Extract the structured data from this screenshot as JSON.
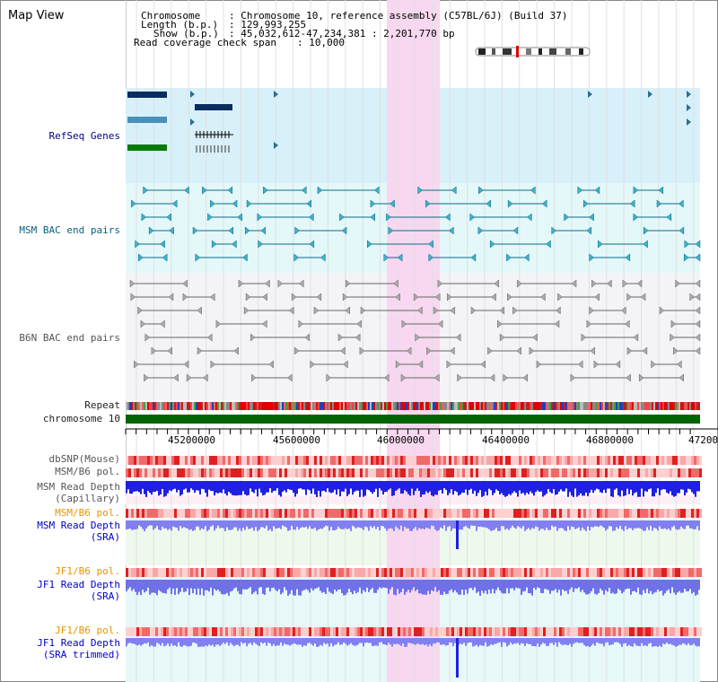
{
  "view": {
    "title": "Map View",
    "chromosome_key": "Chromosome",
    "chromosome_value": ": Chromosome 10, reference assembly (C57BL/6J) (Build 37)",
    "length_key": "Length (b.p.)",
    "length_value": ": 129,993,255",
    "show_key": "Show (b.p.)",
    "show_value": ": 45,032,612-47,234,381 : 2,201,770 bp",
    "coverage_key": "Read coverage check span",
    "coverage_value": ": 10,000"
  },
  "tracks": {
    "refseq": "RefSeq Genes",
    "msm_bac": "MSM BAC end pairs",
    "b6n_bac": "B6N BAC end pairs",
    "repeat": "Repeat",
    "chromosome": "chromosome 10",
    "dbsnp": "dbSNP(Mouse)",
    "msm_b6_pol": "MSM/B6 pol.",
    "msm_read_cap_1": "MSM Read Depth",
    "msm_read_cap_2": "(Capillary)",
    "msm_b6_pol_2": "MSM/B6 pol.",
    "msm_read_sra_1": "MSM Read Depth",
    "msm_read_sra_2": "(SRA)",
    "jf1_b6_pol": "JF1/B6 pol.",
    "jf1_read_sra_1": "JF1 Read Depth",
    "jf1_read_sra_2": "(SRA)",
    "jf1_b6_pol_2": "JF1/B6 pol.",
    "jf1_read_trim_1": "JF1 Read Depth",
    "jf1_read_trim_2": "(SRA trimmed)"
  },
  "axis": {
    "ticks": [
      "45200000",
      "45600000",
      "46000000",
      "46400000",
      "46800000",
      "47200"
    ]
  },
  "colors": {
    "refseq_bg": "#d8f0fa",
    "msm_bg": "#e4f8fa",
    "b6n_bg": "#f4f4f8",
    "highlight": "#f7d8f0",
    "chromosome_bar": "#006400",
    "navy_label": "#00008b",
    "orange_label": "#e69500"
  }
}
